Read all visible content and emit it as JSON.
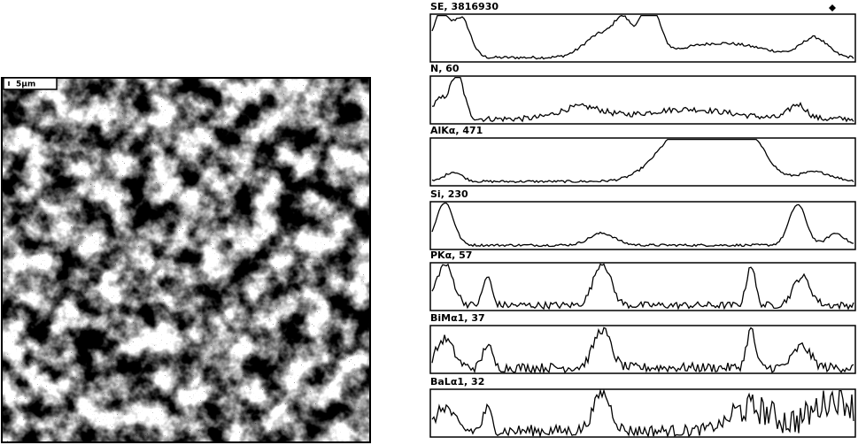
{
  "image": {
    "scale_label": "5μm"
  },
  "panels": [
    {
      "label": "SE, 3816930"
    },
    {
      "label": "N, 60"
    },
    {
      "label": "AlKα, 471"
    },
    {
      "label": "Si, 230"
    },
    {
      "label": "PKα, 57"
    },
    {
      "label": "BiMα1, 37"
    },
    {
      "label": "BaLα1, 32"
    }
  ]
}
